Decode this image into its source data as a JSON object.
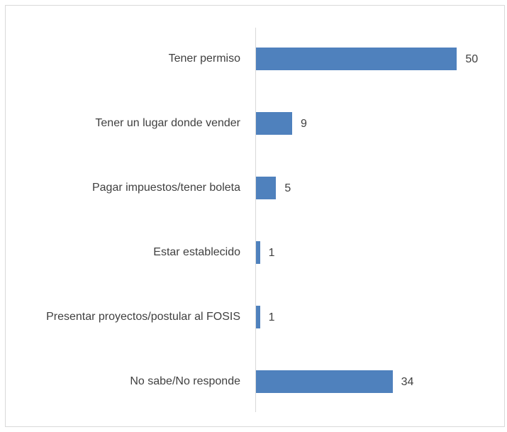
{
  "chart_data": {
    "type": "bar",
    "orientation": "horizontal",
    "categories": [
      "Tener permiso",
      "Tener un lugar donde vender",
      "Pagar impuestos/tener boleta",
      "Estar establecido",
      "Presentar proyectos/postular al FOSIS",
      "No sabe/No responde"
    ],
    "values": [
      50,
      9,
      5,
      1,
      1,
      34
    ],
    "color": "#4f81bd",
    "xlim": [
      0,
      60
    ]
  }
}
